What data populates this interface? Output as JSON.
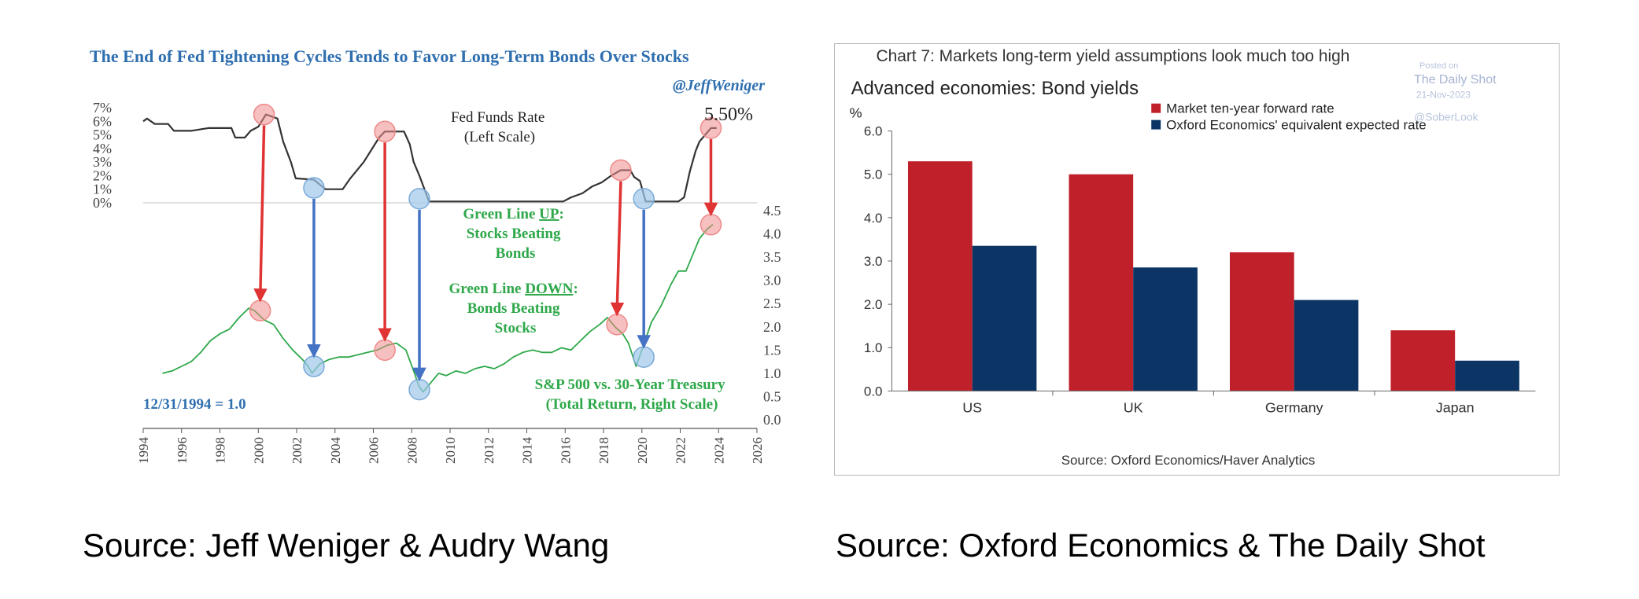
{
  "captions": {
    "left": "Source: Jeff Weniger & Audry Wang",
    "right": "Source: Oxford Economics & The Daily Shot"
  },
  "chart_data": [
    {
      "type": "line",
      "title": "The End of Fed Tightening Cycles Tends to Favor Long-Term Bonds Over Stocks",
      "handle": "@JeffWeniger",
      "x_ticks": [
        "1994",
        "1996",
        "1998",
        "2000",
        "2002",
        "2004",
        "2006",
        "2008",
        "2010",
        "2012",
        "2014",
        "2016",
        "2018",
        "2020",
        "2022",
        "2024",
        "2026"
      ],
      "xlim": [
        1994,
        2026
      ],
      "left_axis": {
        "ticks": [
          "7%",
          "6%",
          "5%",
          "4%",
          "3%",
          "2%",
          "1%",
          "0%"
        ],
        "ylim": [
          0,
          7
        ]
      },
      "right_axis": {
        "ticks": [
          "4.5",
          "4.0",
          "3.5",
          "3.0",
          "2.5",
          "2.0",
          "1.5",
          "1.0",
          "0.5",
          "0.0"
        ],
        "ylim": [
          0,
          4.5
        ]
      },
      "series": [
        {
          "label_lines": [
            "Fed Funds Rate",
            "(Left Scale)"
          ],
          "color": "#333333",
          "axis": "left",
          "points": [
            [
              1994.0,
              6.0
            ],
            [
              1994.2,
              6.2
            ],
            [
              1994.6,
              5.8
            ],
            [
              1995.3,
              5.8
            ],
            [
              1995.6,
              5.3
            ],
            [
              1996.5,
              5.3
            ],
            [
              1997.4,
              5.5
            ],
            [
              1998.6,
              5.5
            ],
            [
              1998.8,
              4.8
            ],
            [
              1999.3,
              4.8
            ],
            [
              1999.6,
              5.3
            ],
            [
              2000.0,
              5.6
            ],
            [
              2000.4,
              6.5
            ],
            [
              2001.0,
              6.2
            ],
            [
              2001.3,
              4.5
            ],
            [
              2001.7,
              3.0
            ],
            [
              2001.95,
              1.8
            ],
            [
              2002.9,
              1.7
            ],
            [
              2003.5,
              1.0
            ],
            [
              2004.4,
              1.0
            ],
            [
              2004.8,
              1.8
            ],
            [
              2005.5,
              3.0
            ],
            [
              2006.3,
              4.8
            ],
            [
              2006.6,
              5.25
            ],
            [
              2007.6,
              5.25
            ],
            [
              2007.9,
              4.3
            ],
            [
              2008.1,
              3.0
            ],
            [
              2008.4,
              2.0
            ],
            [
              2008.9,
              0.1
            ],
            [
              2015.9,
              0.1
            ],
            [
              2016.3,
              0.4
            ],
            [
              2016.9,
              0.7
            ],
            [
              2017.4,
              1.2
            ],
            [
              2017.9,
              1.5
            ],
            [
              2018.4,
              2.0
            ],
            [
              2018.9,
              2.4
            ],
            [
              2019.4,
              2.4
            ],
            [
              2019.6,
              1.9
            ],
            [
              2019.9,
              1.6
            ],
            [
              2020.2,
              0.1
            ],
            [
              2021.9,
              0.1
            ],
            [
              2022.2,
              0.4
            ],
            [
              2022.5,
              2.3
            ],
            [
              2022.8,
              3.8
            ],
            [
              2023.0,
              4.5
            ],
            [
              2023.3,
              5.0
            ],
            [
              2023.6,
              5.5
            ],
            [
              2023.9,
              5.5
            ]
          ]
        },
        {
          "label_lines": [
            "S&P 500 vs. 30-Year Treasury",
            "(Total Return, Right Scale)"
          ],
          "color": "#2ea84a",
          "axis": "right",
          "points": [
            [
              1995.0,
              1.0
            ],
            [
              1995.5,
              1.05
            ],
            [
              1996.0,
              1.15
            ],
            [
              1996.5,
              1.25
            ],
            [
              1997.0,
              1.45
            ],
            [
              1997.5,
              1.7
            ],
            [
              1998.0,
              1.85
            ],
            [
              1998.5,
              1.95
            ],
            [
              1999.0,
              2.2
            ],
            [
              1999.5,
              2.4
            ],
            [
              1999.8,
              2.35
            ],
            [
              2000.3,
              2.15
            ],
            [
              2000.8,
              2.05
            ],
            [
              2001.3,
              1.75
            ],
            [
              2001.8,
              1.5
            ],
            [
              2002.3,
              1.3
            ],
            [
              2002.6,
              1.15
            ],
            [
              2002.8,
              1.0
            ],
            [
              2003.2,
              1.2
            ],
            [
              2003.7,
              1.3
            ],
            [
              2004.2,
              1.35
            ],
            [
              2004.7,
              1.35
            ],
            [
              2005.2,
              1.4
            ],
            [
              2005.7,
              1.45
            ],
            [
              2006.2,
              1.5
            ],
            [
              2006.7,
              1.6
            ],
            [
              2007.2,
              1.65
            ],
            [
              2007.7,
              1.5
            ],
            [
              2008.1,
              1.05
            ],
            [
              2008.4,
              0.7
            ],
            [
              2008.6,
              0.6
            ],
            [
              2009.0,
              0.8
            ],
            [
              2009.4,
              1.0
            ],
            [
              2009.8,
              0.95
            ],
            [
              2010.3,
              1.05
            ],
            [
              2010.8,
              1.0
            ],
            [
              2011.3,
              1.1
            ],
            [
              2011.8,
              1.15
            ],
            [
              2012.3,
              1.1
            ],
            [
              2012.8,
              1.2
            ],
            [
              2013.3,
              1.35
            ],
            [
              2013.8,
              1.45
            ],
            [
              2014.3,
              1.5
            ],
            [
              2014.8,
              1.45
            ],
            [
              2015.3,
              1.45
            ],
            [
              2015.8,
              1.55
            ],
            [
              2016.3,
              1.5
            ],
            [
              2016.8,
              1.7
            ],
            [
              2017.3,
              1.9
            ],
            [
              2017.8,
              2.05
            ],
            [
              2018.2,
              2.2
            ],
            [
              2018.6,
              2.0
            ],
            [
              2019.0,
              1.85
            ],
            [
              2019.3,
              1.65
            ],
            [
              2019.5,
              1.4
            ],
            [
              2019.7,
              1.15
            ],
            [
              2020.0,
              1.5
            ],
            [
              2020.5,
              2.1
            ],
            [
              2021.0,
              2.45
            ],
            [
              2021.5,
              2.9
            ],
            [
              2021.9,
              3.2
            ],
            [
              2022.3,
              3.2
            ],
            [
              2022.7,
              3.6
            ],
            [
              2023.0,
              3.9
            ],
            [
              2023.4,
              4.1
            ],
            [
              2023.7,
              4.2
            ]
          ]
        }
      ],
      "end_label": "5.50%",
      "baseline_note": "12/31/1994 = 1.0",
      "annotations": [
        {
          "lines": [
            "Green Line UP:",
            "Stocks Beating",
            "Bonds"
          ],
          "emphasis": "UP"
        },
        {
          "lines": [
            "Green Line DOWN:",
            "Bonds Beating",
            "Stocks"
          ],
          "emphasis": "DOWN"
        }
      ],
      "arrows": [
        {
          "kind": "tightening-end",
          "color": "#e03333",
          "from": {
            "year": 2000.3,
            "rate": 6.5
          },
          "to": {
            "year": 2000.1,
            "ratio": 2.35
          }
        },
        {
          "kind": "tightening-end",
          "color": "#e03333",
          "from": {
            "year": 2006.6,
            "rate": 5.25
          },
          "to": {
            "year": 2006.6,
            "ratio": 1.5
          }
        },
        {
          "kind": "tightening-end",
          "color": "#e03333",
          "from": {
            "year": 2018.9,
            "rate": 2.4
          },
          "to": {
            "year": 2018.7,
            "ratio": 2.05
          }
        },
        {
          "kind": "tightening-end",
          "color": "#e03333",
          "from": {
            "year": 2023.6,
            "rate": 5.5
          },
          "to": {
            "year": 2023.6,
            "ratio": 4.2
          }
        },
        {
          "kind": "easing-bottom",
          "color": "#4472c4",
          "from": {
            "year": 2002.9,
            "rate": 1.1
          },
          "to": {
            "year": 2002.9,
            "ratio": 1.15
          }
        },
        {
          "kind": "easing-bottom",
          "color": "#4472c4",
          "from": {
            "year": 2008.4,
            "rate": 0.3
          },
          "to": {
            "year": 2008.4,
            "ratio": 0.65
          }
        },
        {
          "kind": "easing-bottom",
          "color": "#4472c4",
          "from": {
            "year": 2020.1,
            "rate": 0.3
          },
          "to": {
            "year": 2020.1,
            "ratio": 1.35
          }
        }
      ]
    },
    {
      "type": "bar",
      "title": "Chart 7: Markets long-term yield assumptions look much too high",
      "subtitle": "Advanced economies: Bond yields",
      "ylabel": "%",
      "ylim": [
        0,
        6
      ],
      "y_ticks": [
        "0.0",
        "1.0",
        "2.0",
        "3.0",
        "4.0",
        "5.0",
        "6.0"
      ],
      "categories": [
        "US",
        "UK",
        "Germany",
        "Japan"
      ],
      "series": [
        {
          "name": "Market ten-year forward rate",
          "color": "#c0202a",
          "values": [
            5.3,
            5.0,
            3.2,
            1.4
          ]
        },
        {
          "name": "Oxford Economics' equivalent expected rate",
          "color": "#0c3566",
          "values": [
            3.35,
            2.85,
            2.1,
            0.7
          ]
        }
      ],
      "legend": "top-right",
      "source": "Source: Oxford Economics/Haver Analytics",
      "watermark": [
        "Posted on",
        "The Daily Shot",
        "21-Nov-2023",
        "@SoberLook"
      ]
    }
  ]
}
